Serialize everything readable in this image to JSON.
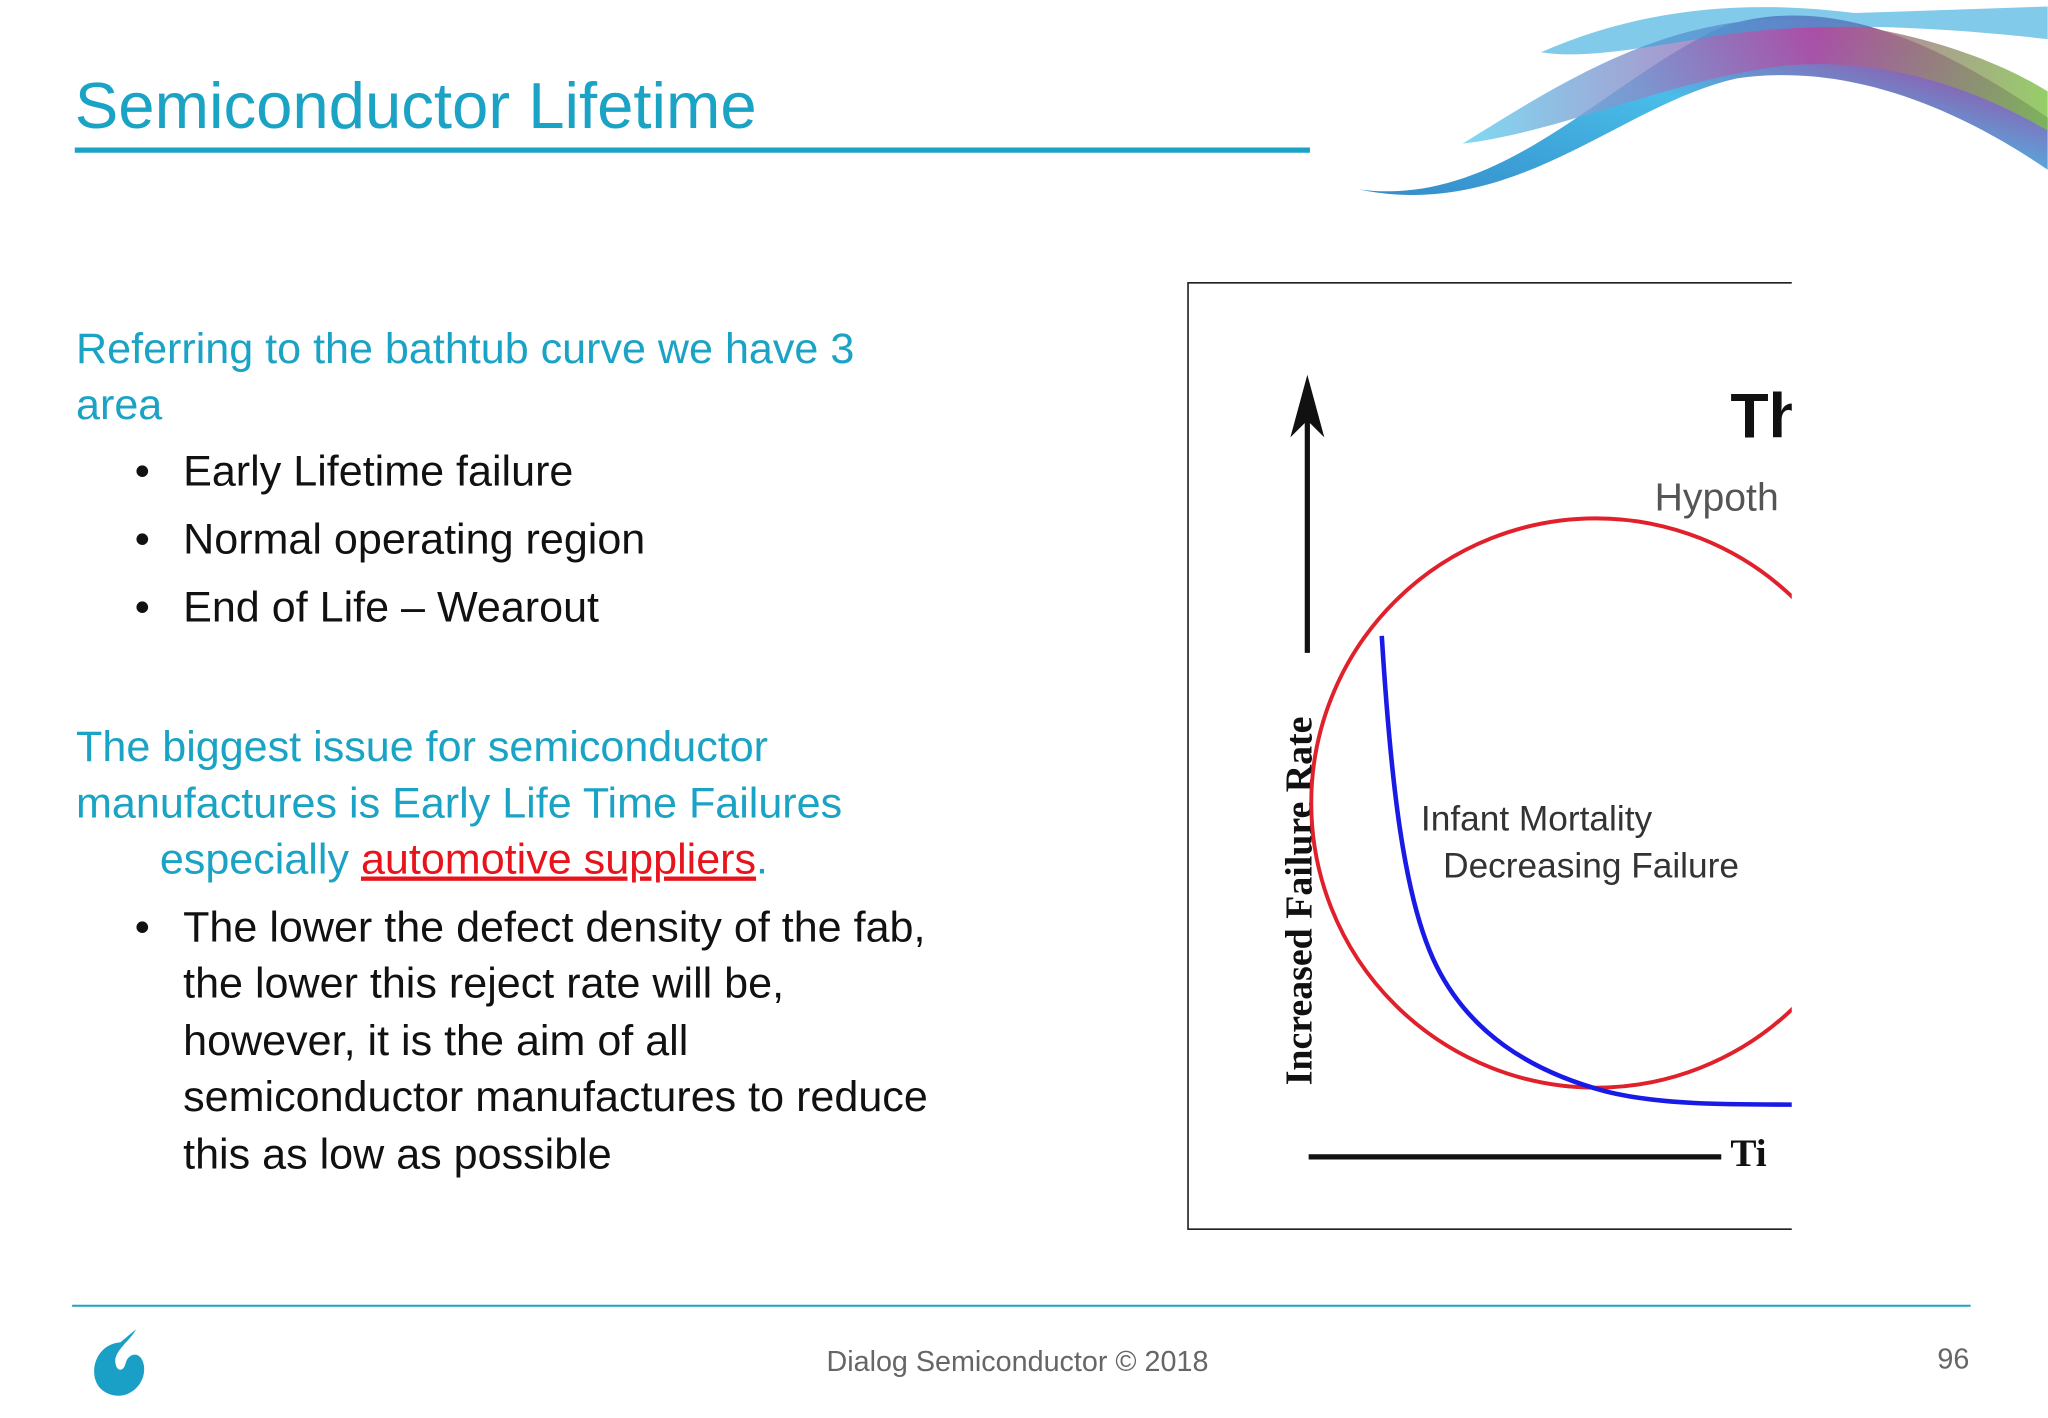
{
  "header": {
    "title": "Semiconductor Lifetime"
  },
  "intro": {
    "lines": [
      "Referring to the bathtub curve we have 3",
      "area"
    ],
    "bullets": [
      "Early Lifetime failure",
      "Normal operating region",
      "End of Life – Wearout"
    ]
  },
  "issue": {
    "lines": [
      "The biggest issue for semiconductor",
      "manufactures is Early Life Time Failures"
    ],
    "last_line": {
      "before": "especially ",
      "link": "automotive suppliers",
      "after": "."
    },
    "bullet_lines": [
      "The lower the defect density of the fab,",
      "the lower this reject rate will be,",
      "however, it is the aim of all",
      "semiconductor manufactures to reduce",
      "this as low as possible"
    ]
  },
  "figure": {
    "title_fragment": "Th",
    "subtitle_fragment": "Hypoth",
    "y_axis_label": "Increased Failure Rate",
    "x_axis_fragment": "Ti",
    "region_label": [
      "Infant Mortality",
      "Decreasing Failure"
    ]
  },
  "footer": {
    "text": "Dialog Semiconductor © 2018",
    "page_number": "96"
  }
}
